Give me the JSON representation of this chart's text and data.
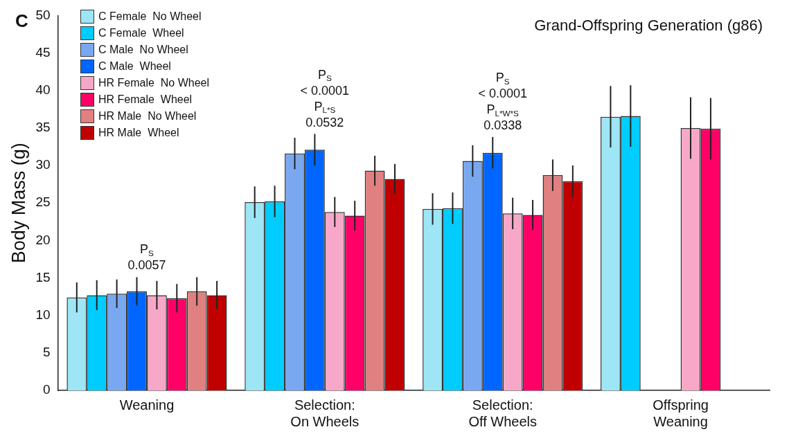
{
  "chart_data": {
    "type": "bar",
    "title": "Grand-Offspring Generation (g86)",
    "ylabel": "Body Mass (g)",
    "categories": [
      "Weaning",
      "Selection:\nOn Wheels",
      "Selection:\nOff Wheels",
      "Offspring\nWeaning"
    ],
    "series": [
      {
        "name": "C Female  No Wheel",
        "color": "#9ee6f5",
        "values": [
          12.4,
          25.1,
          24.2,
          36.5
        ],
        "errors": [
          2.0,
          2.1,
          2.1,
          4.1
        ]
      },
      {
        "name": "C Female  Wheel",
        "color": "#00ccff",
        "values": [
          12.7,
          25.2,
          24.3,
          36.6
        ],
        "errors": [
          2.0,
          2.1,
          2.1,
          4.1
        ]
      },
      {
        "name": "C Male  No Wheel",
        "color": "#7aa8f0",
        "values": [
          12.9,
          31.6,
          30.6,
          null
        ],
        "errors": [
          1.9,
          2.1,
          2.1,
          null
        ]
      },
      {
        "name": "C Male  Wheel",
        "color": "#0066ff",
        "values": [
          13.2,
          32.1,
          31.7,
          null
        ],
        "errors": [
          1.9,
          2.1,
          2.1,
          null
        ]
      },
      {
        "name": "HR Female  No Wheel",
        "color": "#f7a8c8",
        "values": [
          12.7,
          23.8,
          23.6,
          35.0
        ],
        "errors": [
          1.9,
          2.0,
          2.1,
          4.1
        ]
      },
      {
        "name": "HR Female  Wheel",
        "color": "#ff0066",
        "values": [
          12.3,
          23.3,
          23.4,
          34.9
        ],
        "errors": [
          1.9,
          2.0,
          2.0,
          4.1
        ]
      },
      {
        "name": "HR Male  No Wheel",
        "color": "#e08080",
        "values": [
          13.2,
          29.3,
          28.7,
          null
        ],
        "errors": [
          1.9,
          2.0,
          2.1,
          null
        ]
      },
      {
        "name": "HR Male  Wheel",
        "color": "#c00000",
        "values": [
          12.7,
          28.2,
          27.9,
          null
        ],
        "errors": [
          1.9,
          2.0,
          2.1,
          null
        ]
      }
    ],
    "ylim": [
      0,
      50
    ],
    "yticks": [
      0,
      5,
      10,
      15,
      20,
      25,
      30,
      35,
      40,
      45,
      50
    ],
    "grid": false,
    "legend": "top left",
    "annotations": [
      "C",
      "P$_{S}$\n0.0057",
      "P$_{S}$\n< 0.0001\nP$_{L*S}$\n0.0532",
      "P$_{S}$\n< 0.0001\nP$_{L*W*S}$\n0.0338"
    ]
  }
}
